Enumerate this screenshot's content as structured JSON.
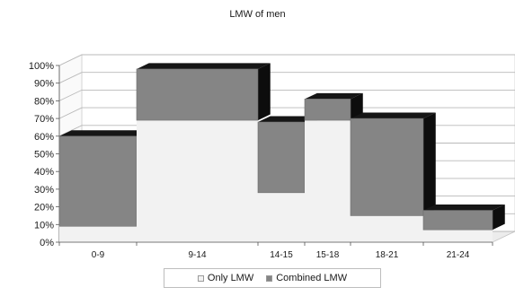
{
  "chart_data": {
    "type": "bar",
    "title": "LMW of men",
    "xlabel": "",
    "ylabel": "",
    "ylim": [
      0,
      100
    ],
    "y_ticks": [
      "0%",
      "10%",
      "20%",
      "30%",
      "40%",
      "50%",
      "60%",
      "70%",
      "80%",
      "90%",
      "100%"
    ],
    "categories": [
      "0-9",
      "9-14",
      "14-15",
      "15-18",
      "18-21",
      "21-24"
    ],
    "series": [
      {
        "name": "Only LMW",
        "values": [
          9,
          69,
          28,
          69,
          15,
          7
        ],
        "color": "#f2f2f2"
      },
      {
        "name": "Combined LMW",
        "values": [
          51,
          29,
          40,
          12,
          55,
          11
        ],
        "color": "#858585"
      }
    ],
    "legend": {
      "placement": "bottom"
    },
    "grid": true,
    "style": "3d-stepped-columns",
    "colors": {
      "wall": "#ffffff",
      "gridline": "#b9b9b9",
      "floor": "#ececec",
      "top_face": "#161616",
      "side_face": "#0d0d0d"
    }
  }
}
